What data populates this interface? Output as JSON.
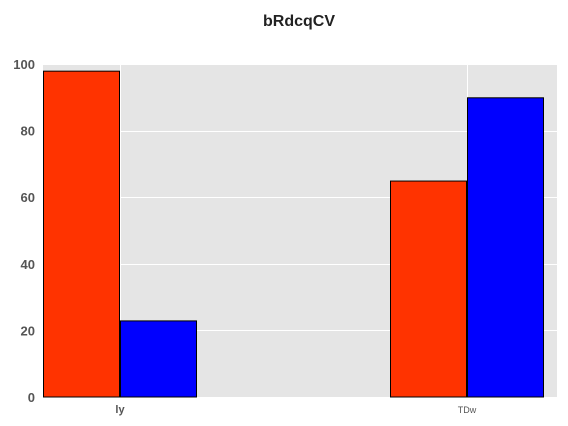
{
  "chart_data": {
    "type": "bar",
    "title": "bRdcqCV",
    "xlabel": "",
    "ylabel": "",
    "categories": [
      "ly",
      "TDw"
    ],
    "category_label_sizes": [
      "normal",
      "small"
    ],
    "series": [
      {
        "values": [
          98,
          65
        ],
        "color": "#ff3300"
      },
      {
        "values": [
          23,
          90
        ],
        "color": "#0000ff"
      }
    ],
    "ylim": [
      0,
      100
    ],
    "yticks": [
      0,
      20,
      40,
      60,
      80,
      100
    ],
    "ytick_labels": [
      "0",
      "20",
      "40",
      "60",
      "80",
      "100"
    ],
    "grid": true,
    "background_color": "#e5e5e5",
    "grid_color": "#ffffff",
    "bar_edge_color": "#000000"
  }
}
